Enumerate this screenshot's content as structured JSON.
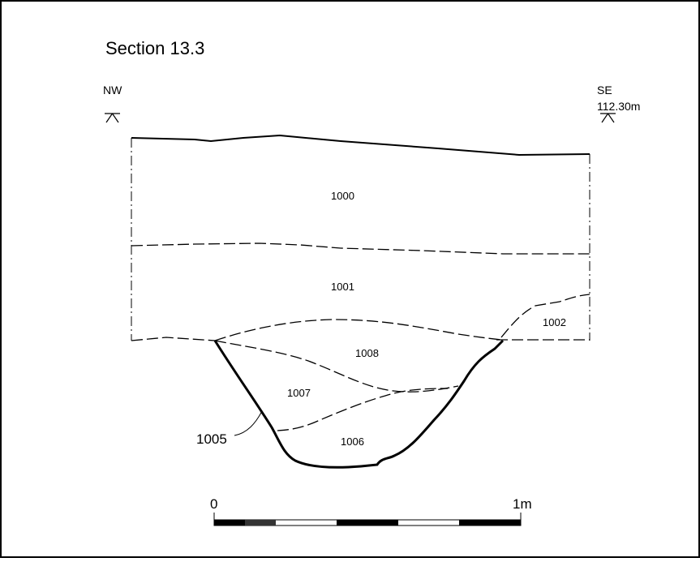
{
  "title": "Section 13.3",
  "orientation": {
    "left": "NW",
    "right": "SE"
  },
  "datum": "112.30m",
  "contexts": [
    {
      "id": "ctx-1000",
      "label": "1000"
    },
    {
      "id": "ctx-1001",
      "label": "1001"
    },
    {
      "id": "ctx-1002",
      "label": "1002"
    },
    {
      "id": "ctx-1008",
      "label": "1008"
    },
    {
      "id": "ctx-1007",
      "label": "1007"
    },
    {
      "id": "ctx-1006",
      "label": "1006"
    }
  ],
  "cut_label": "1005",
  "scale_bar": {
    "start_label": "0",
    "end_label": "1m"
  }
}
